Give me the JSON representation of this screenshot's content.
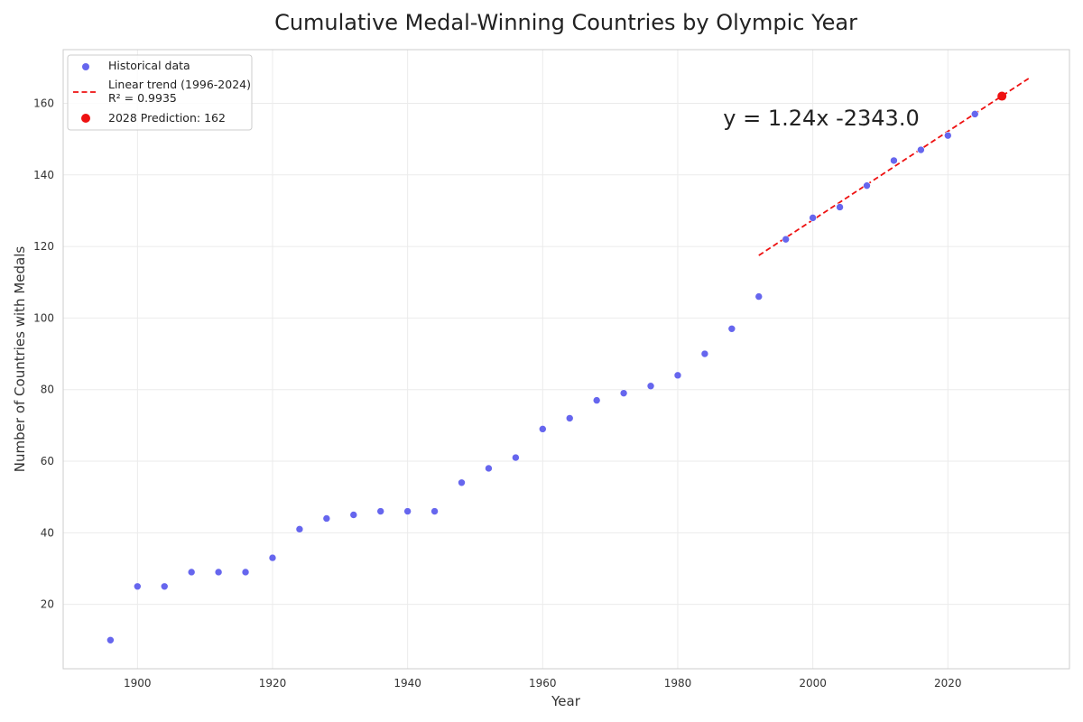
{
  "chart_data": {
    "type": "scatter",
    "title": "Cumulative Medal-Winning Countries by Olympic Year",
    "xlabel": "Year",
    "ylabel": "Number of Countries with Medals",
    "xlim": [
      1889,
      2038
    ],
    "ylim": [
      2,
      175
    ],
    "xticks": [
      1900,
      1920,
      1940,
      1960,
      1980,
      2000,
      2020
    ],
    "yticks": [
      20,
      40,
      60,
      80,
      100,
      120,
      140,
      160
    ],
    "grid": true,
    "legend_placement": "top-left",
    "series": [
      {
        "name": "Historical data",
        "color": "#6666ee",
        "x": [
          1896,
          1900,
          1904,
          1908,
          1912,
          1916,
          1920,
          1924,
          1928,
          1932,
          1936,
          1940,
          1944,
          1948,
          1952,
          1956,
          1960,
          1964,
          1968,
          1972,
          1976,
          1980,
          1984,
          1988,
          1992,
          1996,
          2000,
          2004,
          2008,
          2012,
          2016,
          2020,
          2024
        ],
        "y": [
          10,
          25,
          25,
          29,
          29,
          29,
          33,
          41,
          44,
          45,
          46,
          46,
          46,
          54,
          58,
          61,
          69,
          72,
          77,
          79,
          81,
          84,
          90,
          97,
          106,
          122,
          128,
          131,
          137,
          144,
          147,
          151,
          157
        ]
      }
    ],
    "trend": {
      "name": "Linear trend (1996-2024)",
      "r2_label": "R² = 0.9935",
      "color": "#ee1111",
      "x": [
        1992,
        2032
      ],
      "y": [
        117.5,
        167
      ]
    },
    "prediction": {
      "name": "2028 Prediction: 162",
      "color": "#ee1111",
      "x": 2028,
      "y": 162
    },
    "annotation": "y = 1.24x -2343.0"
  }
}
